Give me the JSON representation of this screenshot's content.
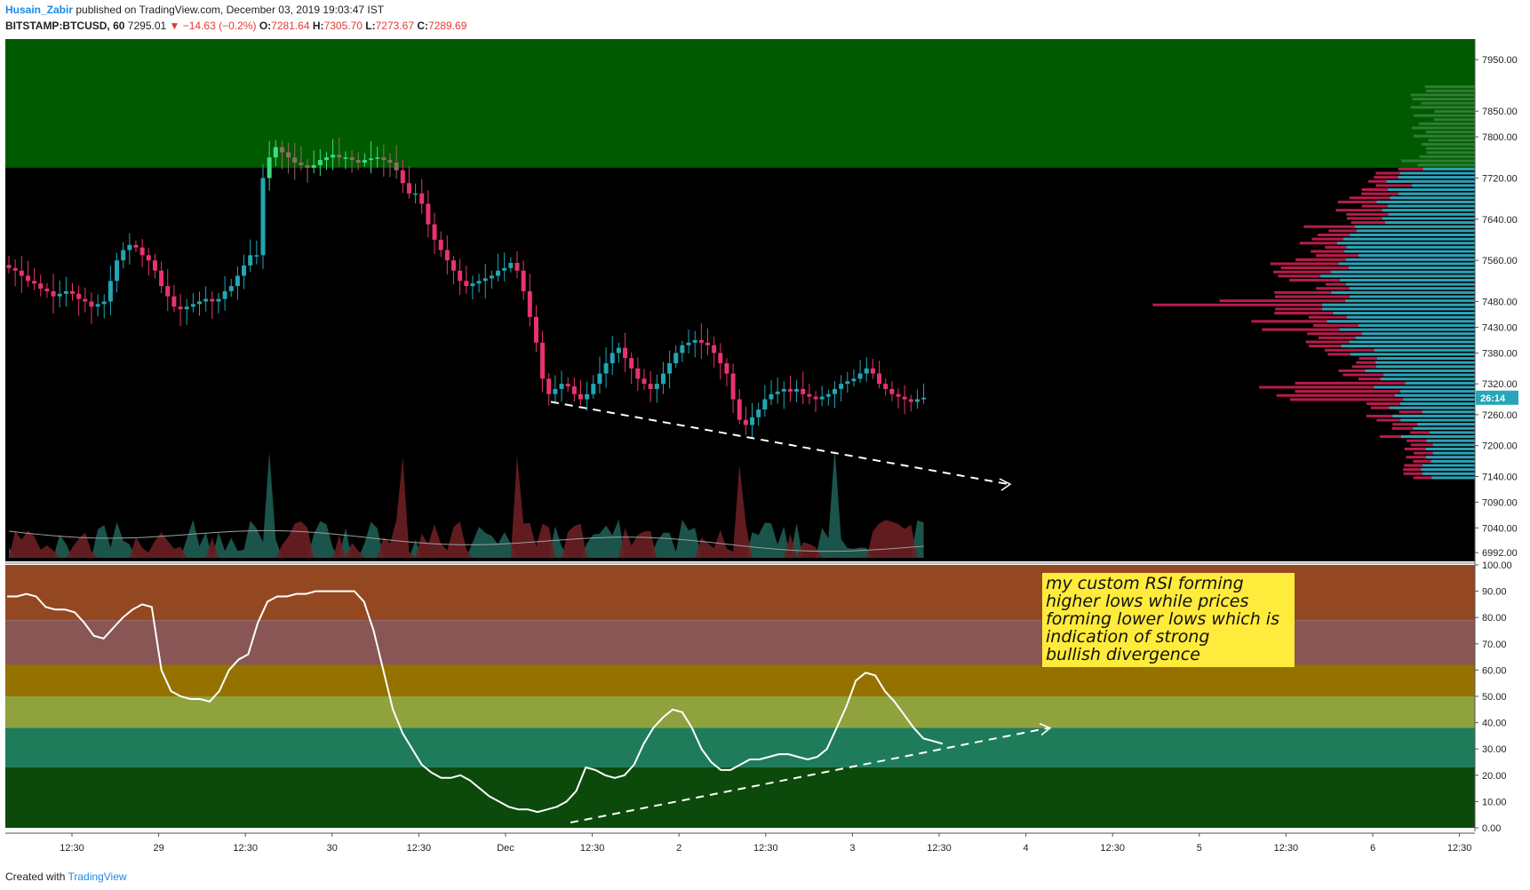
{
  "header": {
    "author": "Husain_Zabir",
    "published": "published on TradingView.com, December 03, 2019 19:03:47 IST",
    "symbol": "BITSTAMP:BTCUSD, 60",
    "last": "7295.01",
    "change": "▼ −14.63 (−0.2%)",
    "o_label": "O:",
    "o": "7281.64",
    "h_label": "H:",
    "h": "7305.70",
    "l_label": "L:",
    "l": "7273.67",
    "c_label": "C:",
    "c": "7289.69"
  },
  "footer": {
    "created": "Created with",
    "brand": "TradingView"
  },
  "annotation": {
    "lines": [
      "my custom RSI forming",
      "higher lows while prices",
      "forming lower lows which is",
      "indication of strong",
      "bullish divergence"
    ]
  },
  "colors": {
    "up": "#26a69a",
    "down": "#ef5350",
    "up_body": "#22a6b3",
    "down_body": "#e8336d",
    "zone_green": "#005a00",
    "bg": "#000000"
  },
  "chart_data": {
    "type": "candlestick",
    "symbol": "BITSTAMP:BTCUSD",
    "interval": "60",
    "price_axis_ticks": [
      7950,
      7850,
      7800,
      7720,
      7640,
      7560,
      7480,
      7430,
      7380,
      7320,
      7260,
      7200,
      7140,
      7090,
      7040,
      6992
    ],
    "price_axis_labels": [
      "7950.00",
      "7850.00",
      "7800.00",
      "7720.00",
      "7640.00",
      "7560.00",
      "7480.00",
      "7430.00",
      "7380.00",
      "7320.00",
      "7260.00",
      "7200.00",
      "7140.00",
      "7090.00",
      "7040.00",
      "6992.00"
    ],
    "current_price_tag": "26:14",
    "time_axis_labels": [
      "12:30",
      "29",
      "12:30",
      "30",
      "12:30",
      "Dec",
      "12:30",
      "2",
      "12:30",
      "3",
      "12:30",
      "4",
      "12:30",
      "5",
      "12:30",
      "6",
      "12:30"
    ],
    "resistance_zone": [
      7740,
      7980
    ],
    "close": [
      7545,
      7540,
      7530,
      7520,
      7515,
      7505,
      7500,
      7490,
      7495,
      7500,
      7495,
      7485,
      7480,
      7470,
      7475,
      7480,
      7520,
      7560,
      7580,
      7590,
      7585,
      7570,
      7560,
      7540,
      7510,
      7490,
      7470,
      7465,
      7470,
      7475,
      7480,
      7485,
      7480,
      7485,
      7500,
      7510,
      7530,
      7550,
      7570,
      7570,
      7720,
      7760,
      7780,
      7770,
      7760,
      7750,
      7745,
      7740,
      7745,
      7755,
      7760,
      7765,
      7760,
      7760,
      7755,
      7750,
      7755,
      7758,
      7760,
      7755,
      7750,
      7735,
      7710,
      7690,
      7690,
      7670,
      7630,
      7600,
      7580,
      7560,
      7540,
      7520,
      7510,
      7515,
      7520,
      7525,
      7530,
      7540,
      7545,
      7555,
      7540,
      7500,
      7450,
      7400,
      7330,
      7300,
      7310,
      7320,
      7315,
      7300,
      7290,
      7300,
      7320,
      7340,
      7360,
      7380,
      7390,
      7370,
      7350,
      7330,
      7320,
      7310,
      7320,
      7340,
      7360,
      7380,
      7395,
      7400,
      7405,
      7400,
      7395,
      7380,
      7360,
      7340,
      7290,
      7250,
      7240,
      7255,
      7270,
      7290,
      7300,
      7305,
      7310,
      7305,
      7310,
      7300,
      7295,
      7290,
      7295,
      7300,
      7310,
      7320,
      7325,
      7330,
      7340,
      7350,
      7340,
      7320,
      7310,
      7300,
      7295,
      7290,
      7285,
      7290,
      7293
    ],
    "rsi": {
      "axis_ticks": [
        100,
        90,
        80,
        70,
        60,
        50,
        40,
        30,
        20,
        10,
        0
      ],
      "axis_labels": [
        "100.00",
        "90.00",
        "80.00",
        "70.00",
        "60.00",
        "50.00",
        "40.00",
        "30.00",
        "20.00",
        "10.00",
        "0.00"
      ],
      "bands": [
        {
          "from": 79,
          "to": 100,
          "color": "#944822"
        },
        {
          "from": 62,
          "to": 79,
          "color": "#895656"
        },
        {
          "from": 50,
          "to": 62,
          "color": "#957200"
        },
        {
          "from": 38,
          "to": 50,
          "color": "#90a23e"
        },
        {
          "from": 23,
          "to": 38,
          "color": "#1e7c5a"
        },
        {
          "from": 0,
          "to": 23,
          "color": "#0b4a0b"
        }
      ],
      "values": [
        88,
        88,
        89,
        88,
        84,
        83,
        83,
        82,
        78,
        73,
        72,
        76,
        80,
        83,
        85,
        84,
        60,
        52,
        50,
        49,
        49,
        48,
        52,
        60,
        64,
        66,
        78,
        86,
        88,
        88,
        89,
        89,
        90,
        90,
        90,
        90,
        90,
        86,
        75,
        60,
        45,
        36,
        30,
        24,
        21,
        19,
        19,
        20,
        18,
        15,
        12,
        10,
        8,
        7,
        7,
        6,
        7,
        8,
        10,
        14,
        23,
        22,
        20,
        19,
        20,
        24,
        32,
        38,
        42,
        45,
        44,
        38,
        30,
        25,
        22,
        22,
        24,
        26,
        26,
        27,
        28,
        28,
        27,
        26,
        27,
        30,
        38,
        46,
        56,
        59,
        58,
        52,
        48,
        43,
        38,
        34,
        33,
        32
      ]
    },
    "divergence": {
      "price": "lower lows",
      "rsi": "higher lows"
    }
  }
}
